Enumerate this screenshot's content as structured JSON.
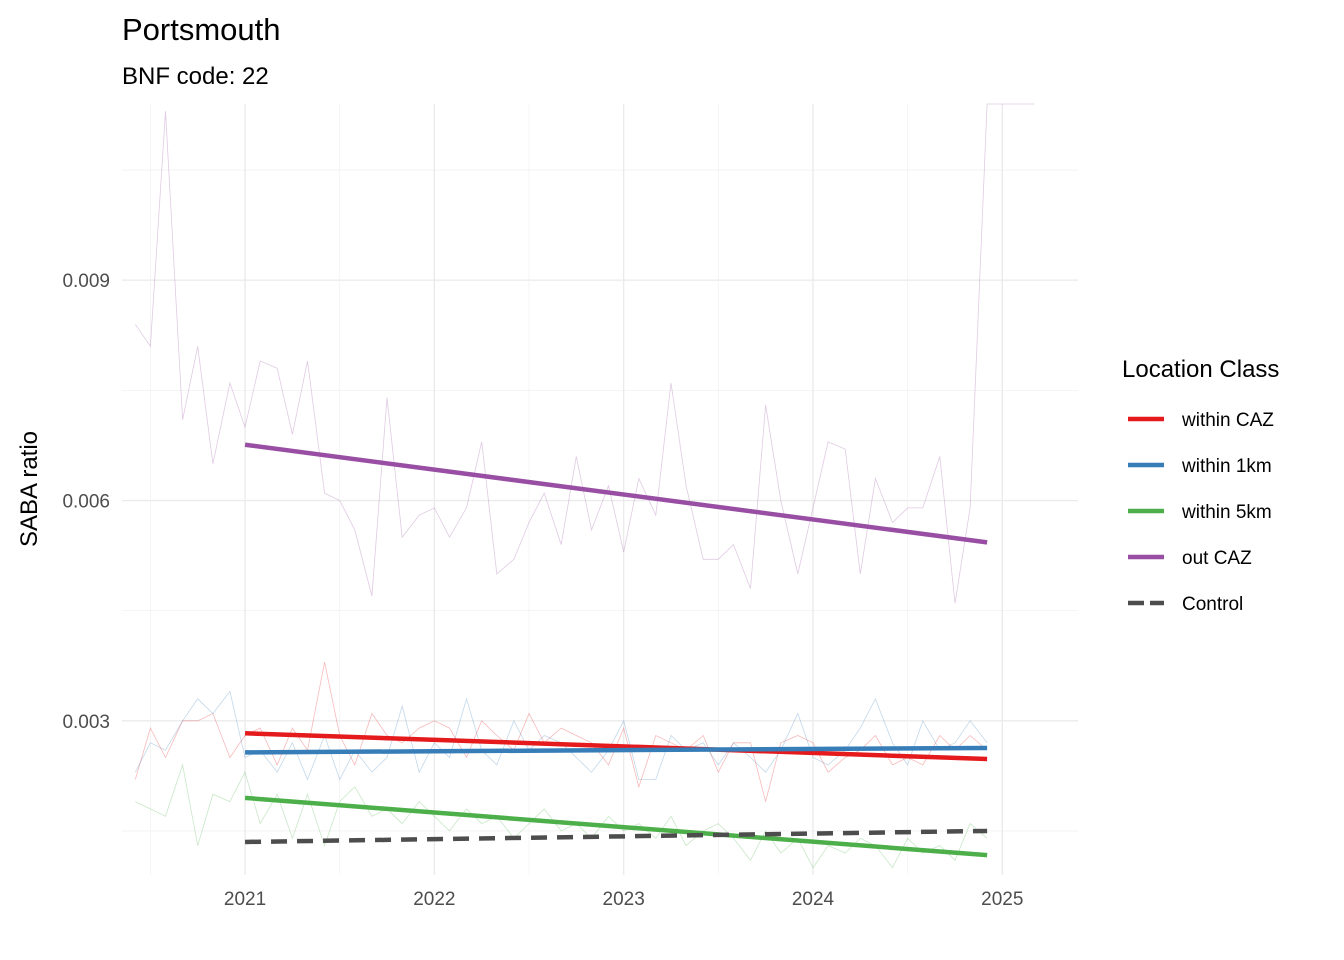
{
  "chart_data": {
    "type": "line",
    "title": "Portsmouth",
    "subtitle": "BNF code: 22",
    "xlabel": "",
    "ylabel": "SABA ratio",
    "xlim": [
      2020.35,
      2025.4
    ],
    "ylim": [
      0.0009,
      0.0114
    ],
    "x_ticks": [
      2021,
      2022,
      2023,
      2024,
      2025
    ],
    "x_tick_labels": [
      "2021",
      "2022",
      "2023",
      "2024",
      "2025"
    ],
    "y_ticks": [
      0.003,
      0.006,
      0.009
    ],
    "y_tick_labels": [
      "0.003",
      "0.006",
      "0.009"
    ],
    "grid": true,
    "legend": {
      "title": "Location Class",
      "position": "right",
      "entries": [
        "within CAZ",
        "within 1km",
        "within 5km",
        "out CAZ",
        "Control"
      ]
    },
    "trend_lines": [
      {
        "name": "within CAZ",
        "color": "#e41a1c",
        "dash": false,
        "x": [
          2021.0,
          2024.92
        ],
        "y": [
          0.00283,
          0.00248
        ]
      },
      {
        "name": "within 1km",
        "color": "#377eb8",
        "dash": false,
        "x": [
          2021.0,
          2024.92
        ],
        "y": [
          0.00257,
          0.00263
        ]
      },
      {
        "name": "within 5km",
        "color": "#4daf4a",
        "dash": false,
        "x": [
          2021.0,
          2024.92
        ],
        "y": [
          0.00195,
          0.00117
        ]
      },
      {
        "name": "out CAZ",
        "color": "#984ea3",
        "dash": false,
        "x": [
          2021.0,
          2024.92
        ],
        "y": [
          0.00676,
          0.00543
        ]
      },
      {
        "name": "Control",
        "color": "#4d4d4d",
        "dash": true,
        "x": [
          2021.0,
          2024.92
        ],
        "y": [
          0.00135,
          0.0015
        ]
      }
    ],
    "raw_series": [
      {
        "name": "out CAZ",
        "color": "#984ea3",
        "x": [
          2020.0,
          2020.08,
          2020.17,
          2020.25,
          2020.33,
          2020.42,
          2020.5,
          2020.58,
          2020.67,
          2020.75,
          2020.83,
          2020.92,
          2021.0,
          2021.08,
          2021.17,
          2021.25,
          2021.33,
          2021.42,
          2021.5,
          2021.58,
          2021.67,
          2021.75,
          2021.83,
          2021.92,
          2022.0,
          2022.08,
          2022.17,
          2022.25,
          2022.33,
          2022.42,
          2022.5,
          2022.58,
          2022.67,
          2022.75,
          2022.83,
          2022.92,
          2023.0,
          2023.08,
          2023.17,
          2023.25,
          2023.33,
          2023.42,
          2023.5,
          2023.58,
          2023.67,
          2023.75,
          2023.83,
          2023.92,
          2024.0,
          2024.08,
          2024.17,
          2024.25,
          2024.33,
          2024.42,
          2024.5,
          2024.58,
          2024.67,
          2024.75,
          2024.83,
          2024.92,
          2025.0,
          2025.17
        ],
        "y": [
          0.0075,
          0.0078,
          0.008,
          0.0083,
          0.0076,
          0.0084,
          0.0081,
          0.0113,
          0.0071,
          0.0081,
          0.0065,
          0.0076,
          0.007,
          0.0079,
          0.0078,
          0.0069,
          0.0079,
          0.0061,
          0.006,
          0.0056,
          0.0047,
          0.0074,
          0.0055,
          0.0058,
          0.0059,
          0.0055,
          0.0059,
          0.0068,
          0.005,
          0.0052,
          0.0057,
          0.0061,
          0.0054,
          0.0066,
          0.0056,
          0.0062,
          0.0053,
          0.0063,
          0.0058,
          0.0076,
          0.0062,
          0.0052,
          0.0052,
          0.0054,
          0.0048,
          0.0073,
          0.006,
          0.005,
          0.0059,
          0.0068,
          0.0067,
          0.005,
          0.0063,
          0.0057,
          0.0059,
          0.0059,
          0.0066,
          0.0046,
          0.0059,
          0.0114,
          0.0114,
          0.0114
        ]
      },
      {
        "name": "within CAZ",
        "color": "#e41a1c",
        "x": [
          2020.42,
          2020.5,
          2020.58,
          2020.67,
          2020.75,
          2020.83,
          2020.92,
          2021.0,
          2021.08,
          2021.17,
          2021.25,
          2021.33,
          2021.42,
          2021.5,
          2021.58,
          2021.67,
          2021.75,
          2021.83,
          2021.92,
          2022.0,
          2022.08,
          2022.17,
          2022.25,
          2022.33,
          2022.42,
          2022.5,
          2022.58,
          2022.67,
          2022.75,
          2022.83,
          2022.92,
          2023.0,
          2023.08,
          2023.17,
          2023.25,
          2023.33,
          2023.42,
          2023.5,
          2023.58,
          2023.67,
          2023.75,
          2023.83,
          2023.92,
          2024.0,
          2024.08,
          2024.17,
          2024.25,
          2024.33,
          2024.42,
          2024.5,
          2024.58,
          2024.67,
          2024.75,
          2024.83,
          2024.92
        ],
        "y": [
          0.0022,
          0.0029,
          0.0025,
          0.003,
          0.003,
          0.0031,
          0.0025,
          0.0028,
          0.0029,
          0.0024,
          0.0029,
          0.0026,
          0.0038,
          0.0028,
          0.0024,
          0.0031,
          0.0028,
          0.0027,
          0.0029,
          0.003,
          0.0029,
          0.0025,
          0.003,
          0.0028,
          0.0026,
          0.0031,
          0.0027,
          0.0029,
          0.0028,
          0.0027,
          0.0024,
          0.0029,
          0.0021,
          0.0028,
          0.0027,
          0.0026,
          0.0028,
          0.0023,
          0.0027,
          0.0027,
          0.0019,
          0.0027,
          0.0028,
          0.0027,
          0.0023,
          0.0025,
          0.0026,
          0.0028,
          0.0024,
          0.0025,
          0.0024,
          0.0028,
          0.0026,
          0.0028,
          0.0026
        ]
      },
      {
        "name": "within 1km",
        "color": "#377eb8",
        "x": [
          2020.42,
          2020.5,
          2020.58,
          2020.67,
          2020.75,
          2020.83,
          2020.92,
          2021.0,
          2021.08,
          2021.17,
          2021.25,
          2021.33,
          2021.42,
          2021.5,
          2021.58,
          2021.67,
          2021.75,
          2021.83,
          2021.92,
          2022.0,
          2022.08,
          2022.17,
          2022.25,
          2022.33,
          2022.42,
          2022.5,
          2022.58,
          2022.67,
          2022.75,
          2022.83,
          2022.92,
          2023.0,
          2023.08,
          2023.17,
          2023.25,
          2023.33,
          2023.42,
          2023.5,
          2023.58,
          2023.67,
          2023.75,
          2023.83,
          2023.92,
          2024.0,
          2024.08,
          2024.17,
          2024.25,
          2024.33,
          2024.42,
          2024.5,
          2024.58,
          2024.67,
          2024.75,
          2024.83,
          2024.92
        ],
        "y": [
          0.0023,
          0.0027,
          0.0026,
          0.003,
          0.0033,
          0.0031,
          0.0034,
          0.0025,
          0.0026,
          0.0023,
          0.0027,
          0.0022,
          0.0028,
          0.0022,
          0.0026,
          0.0023,
          0.0025,
          0.0032,
          0.0023,
          0.0027,
          0.0025,
          0.0033,
          0.0026,
          0.0024,
          0.003,
          0.0026,
          0.0028,
          0.0027,
          0.0025,
          0.0023,
          0.0026,
          0.003,
          0.0022,
          0.0022,
          0.0028,
          0.0026,
          0.0027,
          0.0024,
          0.0027,
          0.0025,
          0.0023,
          0.0026,
          0.0031,
          0.0025,
          0.0024,
          0.0026,
          0.0029,
          0.0033,
          0.0027,
          0.0024,
          0.003,
          0.0026,
          0.0027,
          0.003,
          0.0027
        ]
      },
      {
        "name": "within 5km",
        "color": "#4daf4a",
        "x": [
          2020.42,
          2020.5,
          2020.58,
          2020.67,
          2020.75,
          2020.83,
          2020.92,
          2021.0,
          2021.08,
          2021.17,
          2021.25,
          2021.33,
          2021.42,
          2021.5,
          2021.58,
          2021.67,
          2021.75,
          2021.83,
          2021.92,
          2022.0,
          2022.08,
          2022.17,
          2022.25,
          2022.33,
          2022.42,
          2022.5,
          2022.58,
          2022.67,
          2022.75,
          2022.83,
          2022.92,
          2023.0,
          2023.08,
          2023.17,
          2023.25,
          2023.33,
          2023.42,
          2023.5,
          2023.58,
          2023.67,
          2023.75,
          2023.83,
          2023.92,
          2024.0,
          2024.08,
          2024.17,
          2024.25,
          2024.33,
          2024.42,
          2024.5,
          2024.58,
          2024.67,
          2024.75,
          2024.83,
          2024.92
        ],
        "y": [
          0.0019,
          0.0018,
          0.0017,
          0.0024,
          0.0013,
          0.002,
          0.0019,
          0.0023,
          0.0016,
          0.002,
          0.0014,
          0.002,
          0.0013,
          0.0019,
          0.0021,
          0.0017,
          0.0018,
          0.0016,
          0.0019,
          0.0017,
          0.0015,
          0.0018,
          0.0016,
          0.0017,
          0.0014,
          0.0016,
          0.0018,
          0.0015,
          0.0016,
          0.0014,
          0.0017,
          0.0015,
          0.0016,
          0.0014,
          0.0017,
          0.0013,
          0.0015,
          0.0016,
          0.0014,
          0.0011,
          0.0015,
          0.0012,
          0.0014,
          0.001,
          0.0013,
          0.0012,
          0.0014,
          0.0013,
          0.001,
          0.0014,
          0.0012,
          0.0013,
          0.0011,
          0.0016,
          0.0014
        ]
      }
    ]
  }
}
